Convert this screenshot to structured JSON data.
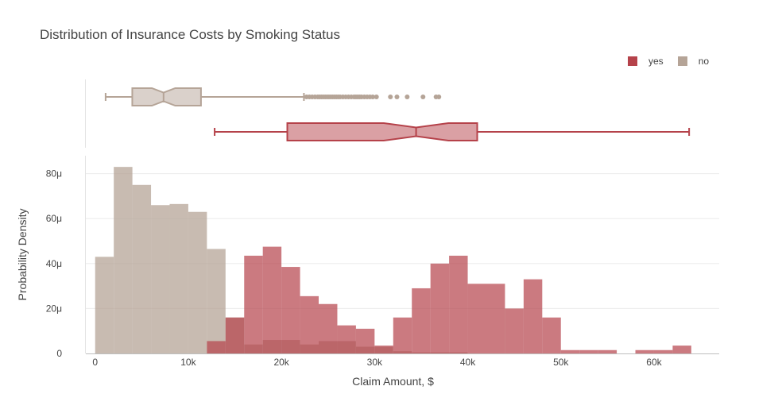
{
  "chart_data": {
    "type": "histogram",
    "title": "Distribution of Insurance Costs by Smoking Status",
    "xlabel": "Claim Amount, $",
    "ylabel": "Probability Density",
    "xlim": [
      -1000,
      67000
    ],
    "ylim": [
      0,
      88
    ],
    "y_units": "μ",
    "x_ticks": [
      0,
      10000,
      20000,
      30000,
      40000,
      50000,
      60000
    ],
    "x_tick_labels": [
      "0",
      "10k",
      "20k",
      "30k",
      "40k",
      "50k",
      "60k"
    ],
    "y_ticks": [
      0,
      20,
      40,
      60,
      80
    ],
    "y_tick_labels": [
      "0",
      "20μ",
      "40μ",
      "60μ",
      "80μ"
    ],
    "legend_position": "top-right",
    "grid": true,
    "bin_width": 2000,
    "series": [
      {
        "name": "yes",
        "color": "#b5424a",
        "bin_start": 12000,
        "values": [
          5.5,
          16,
          43.5,
          47.5,
          38.5,
          25.5,
          22,
          12.5,
          11,
          3.5,
          16,
          29,
          40,
          43.5,
          31,
          31,
          20,
          33,
          16,
          1.5,
          1.5,
          1.5,
          0,
          1.5,
          1.5,
          3.5
        ],
        "box": {
          "min": 12829,
          "q1": 20630,
          "median": 34456,
          "q3": 41020,
          "max": 63770
        }
      },
      {
        "name": "no",
        "color": "#b5a497",
        "bin_start": 0,
        "values": [
          43,
          83,
          75,
          66,
          66.5,
          63,
          46.5,
          16,
          4,
          6,
          6,
          4,
          5.5,
          5.5,
          3,
          3,
          1,
          0.5,
          0.5,
          0.5
        ],
        "box": {
          "min": 1122,
          "q1": 3986,
          "median": 7345,
          "q3": 11363,
          "max": 22412
        },
        "outliers": [
          22700,
          23000,
          23300,
          23600,
          23900,
          24100,
          24300,
          24500,
          24700,
          24900,
          25100,
          25300,
          25500,
          25700,
          25900,
          26100,
          26300,
          26600,
          26900,
          27200,
          27500,
          27800,
          28000,
          28200,
          28400,
          28600,
          28900,
          29200,
          29500,
          29800,
          30200,
          31700,
          32400,
          33500,
          35200,
          36600,
          36900
        ]
      }
    ]
  }
}
